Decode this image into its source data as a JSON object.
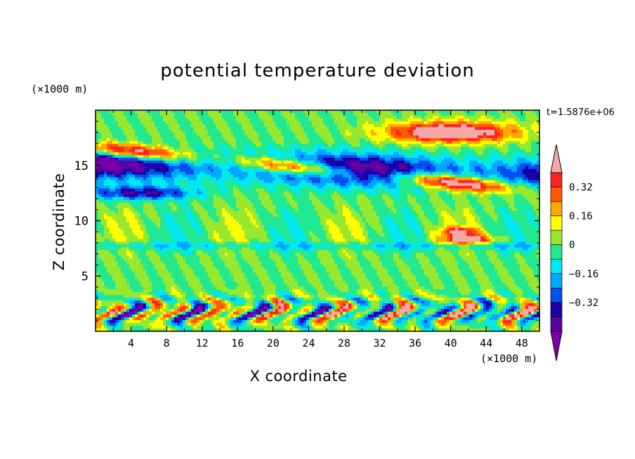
{
  "chart_data": {
    "type": "heatmap",
    "title": "potential temperature deviation",
    "xlabel": "X coordinate",
    "ylabel": "Z coordinate",
    "x_unit": "(×1000 m)",
    "y_unit": "(×1000 m)",
    "timestamp": "t=1.5876e+06",
    "xlim": [
      0,
      50
    ],
    "ylim": [
      0,
      20
    ],
    "x_ticks": [
      4,
      8,
      12,
      16,
      20,
      24,
      28,
      32,
      36,
      40,
      44,
      48
    ],
    "y_ticks": [
      5,
      10,
      15
    ],
    "colorbar": {
      "levels": [
        -0.48,
        -0.4,
        -0.32,
        -0.24,
        -0.16,
        -0.08,
        0,
        0.08,
        0.16,
        0.24,
        0.32,
        0.4
      ],
      "tick_labels": [
        "0.32",
        "0.16",
        "0",
        "−0.16",
        "−0.32"
      ],
      "tick_values": [
        0.32,
        0.16,
        0,
        -0.16,
        -0.32
      ],
      "colors": [
        "#7b00a8",
        "#5a00a0",
        "#1c00a8",
        "#0050f0",
        "#00a8ff",
        "#00e8f0",
        "#22e890",
        "#98e830",
        "#ffff00",
        "#ffa800",
        "#ff5a00",
        "#ff2222",
        "#f4a8a8"
      ],
      "extend": "both"
    },
    "features": [
      {
        "desc": "positive pink/red bands tilted, descending eastward",
        "z_range": [
          11,
          18
        ],
        "value": 0.45
      },
      {
        "desc": "negative dark purple band",
        "z_range": [
          12,
          18
        ],
        "value": -0.45
      },
      {
        "desc": "turbulent boundary layer mixing",
        "z_range": [
          0,
          4
        ],
        "value": "mixed"
      },
      {
        "desc": "uniform near-zero mid troposphere",
        "z_range": [
          4,
          11
        ],
        "value": 0.0
      }
    ]
  },
  "colors": {
    "frame": "#000000",
    "background": "#ffffff"
  }
}
